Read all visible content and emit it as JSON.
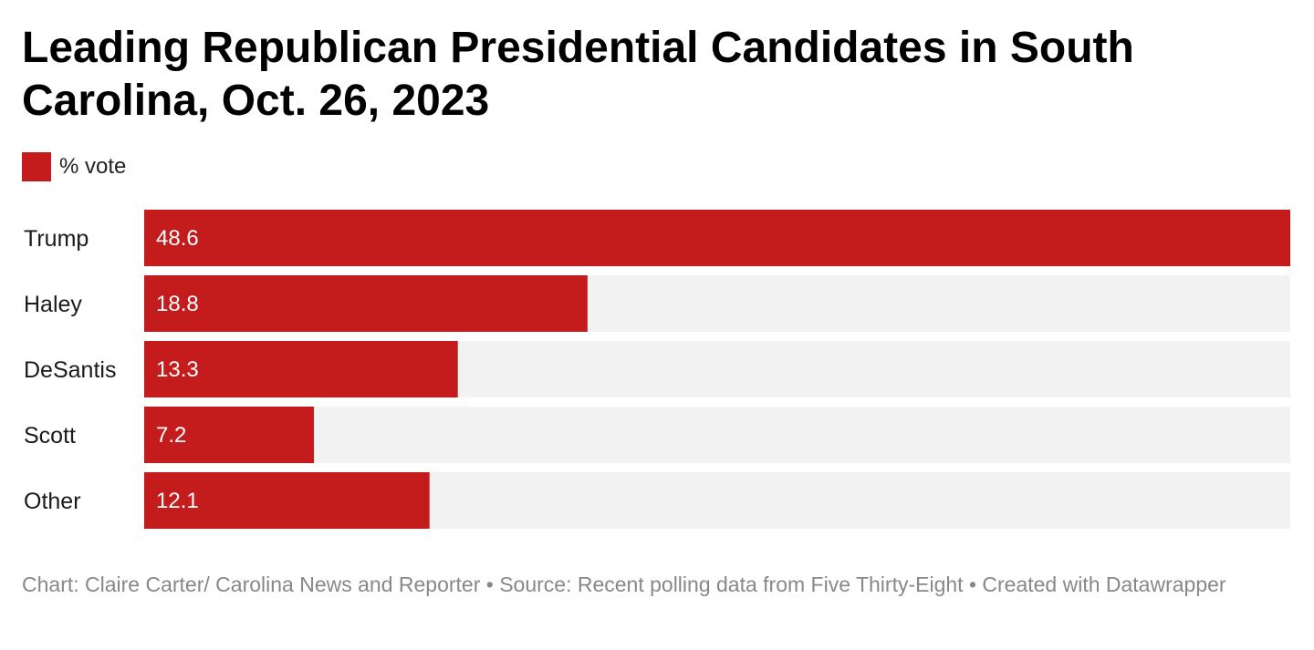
{
  "chart_data": {
    "type": "bar",
    "orientation": "horizontal",
    "title": "Leading Republican Presidential Candidates in South Carolina, Oct. 26, 2023",
    "legend": [
      "% vote"
    ],
    "categories": [
      "Trump",
      "Haley",
      "DeSantis",
      "Scott",
      "Other"
    ],
    "series": [
      {
        "name": "% vote",
        "values": [
          48.6,
          18.8,
          13.3,
          7.2,
          12.1
        ]
      }
    ],
    "value_labels": [
      "48.6",
      "18.8",
      "13.3",
      "7.2",
      "12.1"
    ],
    "xlim": [
      0,
      48.6
    ],
    "xlabel": "",
    "ylabel": "",
    "grid": false,
    "legend_position": "top-left"
  },
  "footer": {
    "text": "Chart: Claire Carter/ Carolina News and Reporter • Source: Recent polling data from Five Thirty-Eight  • Created with Datawrapper"
  },
  "colors": {
    "bar": "#c41c1c",
    "track": "#f2f2f2"
  }
}
